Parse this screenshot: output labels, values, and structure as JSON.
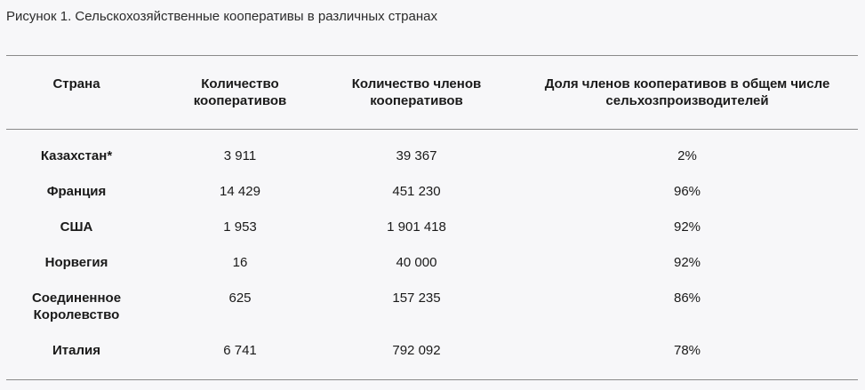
{
  "caption": "Рисунок 1. Сельскохозяйственные кооперативы в различных странах",
  "table": {
    "headers": [
      "Страна",
      "Количество кооперативов",
      "Количество членов кооперативов",
      "Доля членов кооперативов в общем числе сельхозпроизводителей"
    ],
    "rows": [
      {
        "country": "Казахстан*",
        "cooperatives": "3 911",
        "members": "39 367",
        "share": "2%"
      },
      {
        "country": "Франция",
        "cooperatives": "14 429",
        "members": "451 230",
        "share": "96%"
      },
      {
        "country": "США",
        "cooperatives": "1 953",
        "members": "1 901 418",
        "share": "92%"
      },
      {
        "country": "Норвегия",
        "cooperatives": "16",
        "members": "40 000",
        "share": "92%"
      },
      {
        "country": "Соединенное Королевство",
        "cooperatives": "625",
        "members": "157 235",
        "share": "86%"
      },
      {
        "country": "Италия",
        "cooperatives": "6 741",
        "members": "792 092",
        "share": "78%"
      }
    ]
  }
}
